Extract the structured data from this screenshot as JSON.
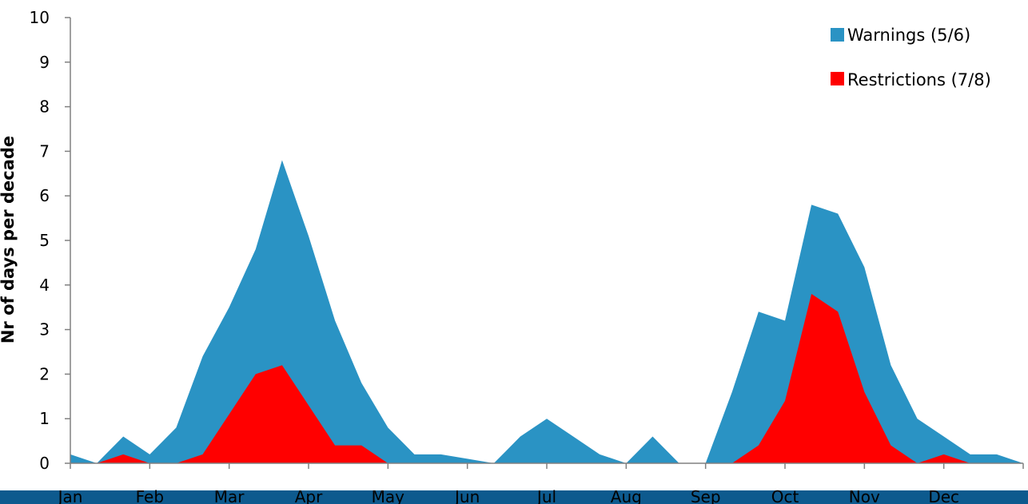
{
  "colors": {
    "warnings": "#2a93c4",
    "restrictions": "#ff0000",
    "axis": "#808080",
    "footer_band": "#0d5a8e"
  },
  "chart_data": {
    "type": "area",
    "title": "",
    "xlabel": "",
    "ylabel": "Nr of days per decade",
    "ylim": [
      0,
      10
    ],
    "yticks": [
      0,
      1,
      2,
      3,
      4,
      5,
      6,
      7,
      8,
      9,
      10
    ],
    "x_unit": "decade",
    "x_range": [
      1,
      36
    ],
    "month_labels": [
      "Jan",
      "Feb",
      "Mar",
      "Apr",
      "May",
      "Jun",
      "Jul",
      "Aug",
      "Sep",
      "Oct",
      "Nov",
      "Dec"
    ],
    "grid": false,
    "legend_position": "top-right",
    "series": [
      {
        "name": "Warnings (5/6)",
        "color": "#2a93c4",
        "values": [
          0.2,
          0,
          0.6,
          0.2,
          0.8,
          2.4,
          3.5,
          4.8,
          6.8,
          5.1,
          3.2,
          1.8,
          0.8,
          0.2,
          0.2,
          0.1,
          0,
          0.6,
          1.0,
          0.6,
          0.2,
          0,
          0.6,
          0,
          0,
          1.6,
          3.4,
          3.2,
          5.8,
          5.6,
          4.4,
          2.2,
          1.0,
          0.6,
          0.2,
          0.2,
          0
        ]
      },
      {
        "name": "Restrictions (7/8)",
        "color": "#ff0000",
        "values": [
          0,
          0,
          0.2,
          0,
          0,
          0.2,
          1.1,
          2.0,
          2.2,
          1.3,
          0.4,
          0.4,
          0,
          0,
          0,
          0,
          0,
          0,
          0,
          0,
          0,
          0,
          0,
          0,
          0,
          0,
          0.4,
          1.4,
          3.8,
          3.4,
          1.6,
          0.4,
          0,
          0.2,
          0,
          0,
          0
        ]
      }
    ]
  }
}
